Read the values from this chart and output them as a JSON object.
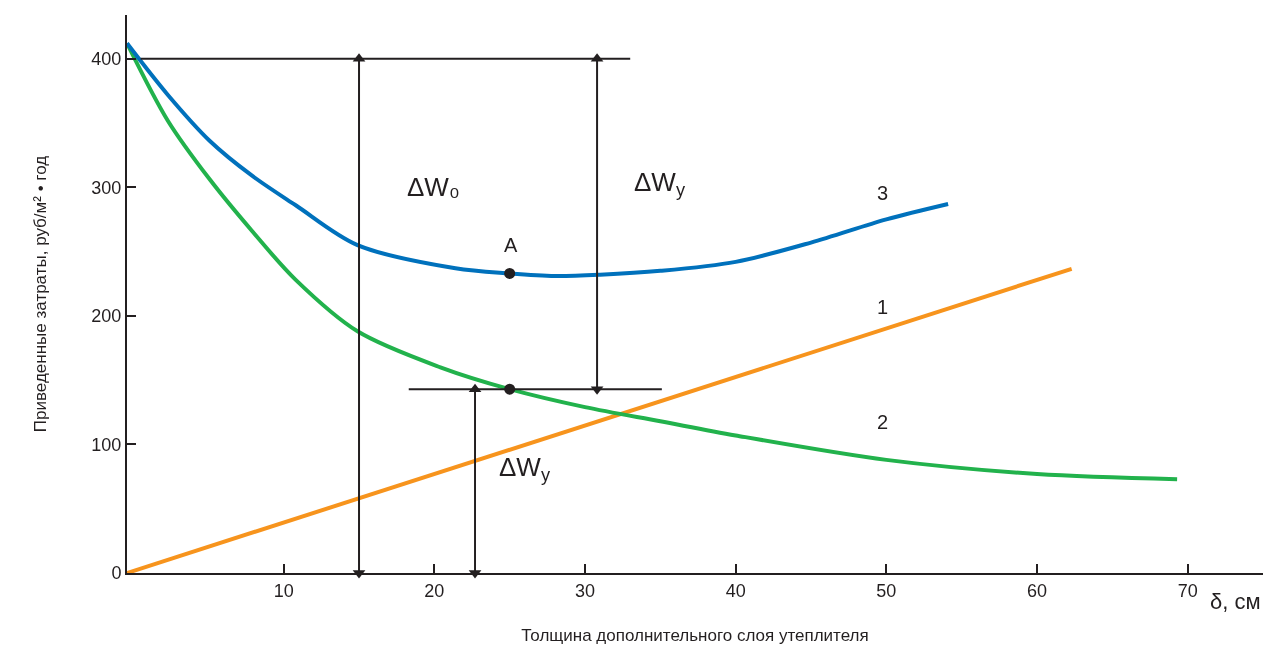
{
  "chart_data": {
    "type": "line",
    "xlabel": "Толщина дополнительного слоя утеплителя",
    "ylabel": "Приведенные затраты, руб/м² • год",
    "xlim": [
      -0.4,
      75
    ],
    "ylim": [
      0,
      434
    ],
    "xticks": [
      10,
      20,
      30,
      40,
      50,
      60,
      70
    ],
    "yticks": [
      0,
      100,
      200,
      300,
      400
    ],
    "marker": "none",
    "line_style": "solid",
    "series": [
      {
        "color": "#f7941d",
        "x": [
          -0.4,
          62.3
        ],
        "values": [
          0,
          236.6
        ]
      },
      {
        "color": "#22b24c",
        "x": [
          -0.4,
          2.3,
          5.1,
          7.9,
          10.8,
          14.9,
          20.4,
          25,
          30,
          35,
          40,
          50,
          60,
          69.3
        ],
        "values": [
          412,
          352,
          306,
          266,
          228,
          188,
          160,
          143,
          129,
          118,
          107,
          88,
          77,
          73
        ]
      },
      {
        "color": "#0071bc",
        "x": [
          -0.4,
          2.3,
          5.1,
          7.9,
          10.8,
          14.9,
          21.4,
          25,
          28,
          31,
          35,
          40,
          45,
          50,
          54.1
        ],
        "values": [
          412,
          372,
          336,
          309,
          286,
          255,
          237,
          233,
          231,
          232,
          235,
          242,
          257,
          275,
          287
        ]
      },
      {
        "type": "line",
        "color": "#231f20",
        "x": [
          0.5,
          33
        ],
        "values": [
          400,
          400
        ]
      },
      {
        "type": "line",
        "color": "#231f20",
        "x": [
          18.3,
          35.1
        ],
        "values": [
          143,
          143
        ]
      },
      {
        "type": "line",
        "color": "#231f20",
        "marker": "triangle",
        "x": [
          15,
          15
        ],
        "values": [
          0,
          400
        ]
      },
      {
        "type": "line",
        "color": "#231f20",
        "marker": "triangle",
        "x": [
          30.8,
          30.8
        ],
        "values": [
          143,
          400
        ]
      },
      {
        "type": "line",
        "color": "#231f20",
        "marker": "triangle",
        "x": [
          22.7,
          22.7
        ],
        "values": [
          0,
          143
        ]
      },
      {
        "type": "scatter",
        "color": "#231f20",
        "marker": "circle",
        "x": [
          25,
          25
        ],
        "values": [
          233,
          143
        ]
      }
    ],
    "annotations": [
      "δ, см",
      "1",
      "2",
      "3",
      "A",
      "ΔW₀",
      "ΔW$_{у}$",
      "ΔW$_{у}$"
    ]
  }
}
